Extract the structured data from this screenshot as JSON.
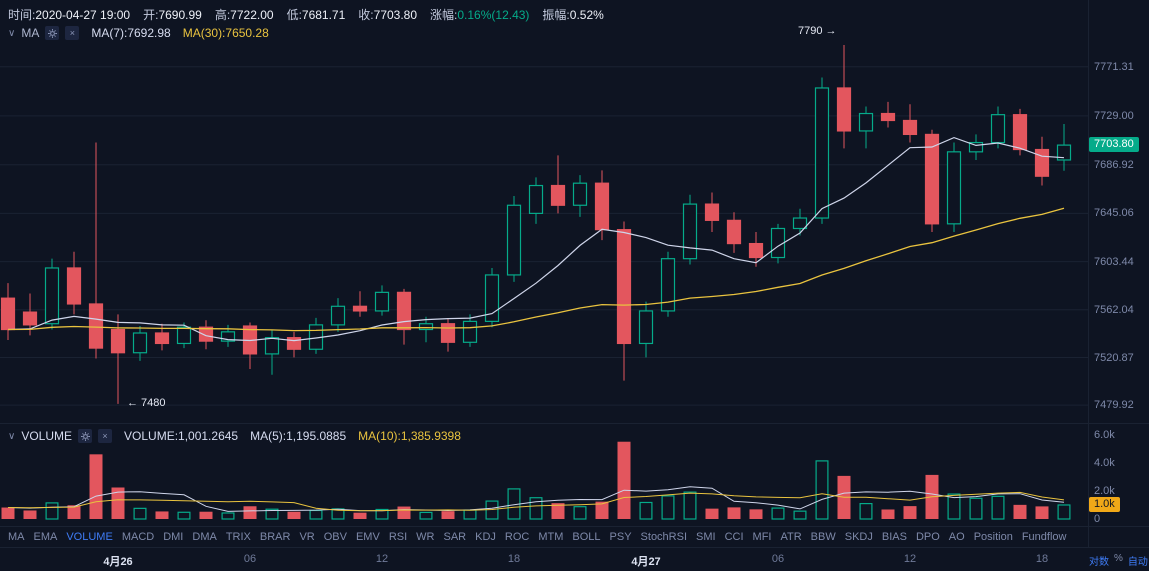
{
  "header": {
    "time_label": "时间:",
    "time_value": "2020-04-27 19:00",
    "open_label": "开:",
    "open_value": "7690.99",
    "high_label": "高:",
    "high_value": "7722.00",
    "low_label": "低:",
    "low_value": "7681.71",
    "close_label": "收:",
    "close_value": "7703.80",
    "change_label": "涨幅:",
    "change_value": "0.16%(12.43)",
    "amplitude_label": "振幅:",
    "amplitude_value": "0.52%"
  },
  "ma_panel": {
    "collapse_icon": "∨",
    "title": "MA",
    "ma7_label": "MA(7):7692.98",
    "ma30_label": "MA(30):7650.28",
    "close_icon": "×"
  },
  "volume_panel": {
    "collapse_icon": "∨",
    "title": "VOLUME",
    "volume_label": "VOLUME:1,001.2645",
    "ma5_label": "MA(5):1,195.0885",
    "ma10_label": "MA(10):1,385.9398",
    "close_icon": "×"
  },
  "annotations": {
    "high": "7790 →",
    "low": "← 7480"
  },
  "price_axis": {
    "labels": [
      "7771.31",
      "7729.00",
      "7686.92",
      "7645.06",
      "7603.44",
      "7562.04",
      "7520.87",
      "7479.92"
    ],
    "current": "7703.80"
  },
  "volume_axis": {
    "labels": [
      {
        "text": "6.0k",
        "value": 6000
      },
      {
        "text": "4.0k",
        "value": 4000
      },
      {
        "text": "2.0k",
        "value": 2000
      },
      {
        "text": "0",
        "value": 0
      }
    ],
    "current": "1.0k"
  },
  "toolbar": {
    "items": [
      "MA",
      "EMA",
      "VOLUME",
      "MACD",
      "DMI",
      "DMA",
      "TRIX",
      "BRAR",
      "VR",
      "OBV",
      "EMV",
      "RSI",
      "WR",
      "SAR",
      "KDJ",
      "ROC",
      "MTM",
      "BOLL",
      "PSY",
      "StochRSI",
      "SMI",
      "CCI",
      "MFI",
      "ATR",
      "BBW",
      "SKDJ",
      "BIAS",
      "DPO",
      "AO",
      "Position",
      "Fundflow"
    ],
    "active": "VOLUME"
  },
  "time_axis": {
    "labels": [
      {
        "text": "4月26",
        "index": 5,
        "major": true
      },
      {
        "text": "06",
        "index": 11,
        "major": false
      },
      {
        "text": "12",
        "index": 17,
        "major": false
      },
      {
        "text": "18",
        "index": 23,
        "major": false
      },
      {
        "text": "4月27",
        "index": 29,
        "major": true
      },
      {
        "text": "06",
        "index": 35,
        "major": false
      },
      {
        "text": "12",
        "index": 41,
        "major": false
      },
      {
        "text": "18",
        "index": 47,
        "major": false
      }
    ],
    "scale_log": "对数",
    "percent": "%",
    "auto": "自动"
  },
  "colors": {
    "background": "#0e1422",
    "grid": "#1a2232",
    "up": "#05ab8a",
    "down": "#e3565e",
    "ma_fast": "#cfd5ea",
    "ma_slow": "#e9c33f",
    "accent_blue": "#3f7cf6",
    "tag_orange": "#f0a818"
  },
  "chart_data": {
    "type": "candlestick+volume",
    "interval": "1h",
    "price_range": {
      "min": 7480,
      "max": 7790
    },
    "price_gridlines": [
      7771.31,
      7729.0,
      7686.92,
      7645.06,
      7603.44,
      7562.04,
      7520.87,
      7479.92
    ],
    "volume_range": {
      "min": 0,
      "max": 6000
    },
    "last_close": 7703.8,
    "last_volume": 1001.2645,
    "ma_periods": {
      "price": [
        7,
        30
      ],
      "volume": [
        5,
        10
      ]
    },
    "high_annotation_index": 38,
    "low_annotation_index": 5,
    "candles": [
      [
        7572,
        7585,
        7536,
        7545
      ],
      [
        7560,
        7576,
        7540,
        7549
      ],
      [
        7550,
        7606,
        7545,
        7598
      ],
      [
        7598,
        7612,
        7558,
        7567
      ],
      [
        7567,
        7706,
        7520,
        7529
      ],
      [
        7545,
        7558,
        7481,
        7525
      ],
      [
        7525,
        7548,
        7518,
        7542
      ],
      [
        7542,
        7550,
        7527,
        7533
      ],
      [
        7533,
        7551,
        7529,
        7547
      ],
      [
        7547,
        7553,
        7528,
        7535
      ],
      [
        7535,
        7549,
        7530,
        7543
      ],
      [
        7548,
        7551,
        7511,
        7524
      ],
      [
        7524,
        7545,
        7506,
        7538
      ],
      [
        7538,
        7543,
        7521,
        7528
      ],
      [
        7528,
        7555,
        7524,
        7549
      ],
      [
        7549,
        7572,
        7543,
        7565
      ],
      [
        7565,
        7578,
        7556,
        7561
      ],
      [
        7561,
        7583,
        7557,
        7577
      ],
      [
        7577,
        7580,
        7532,
        7545
      ],
      [
        7545,
        7556,
        7534,
        7550
      ],
      [
        7550,
        7554,
        7526,
        7534
      ],
      [
        7534,
        7558,
        7530,
        7552
      ],
      [
        7552,
        7598,
        7547,
        7592
      ],
      [
        7592,
        7660,
        7586,
        7652
      ],
      [
        7645,
        7676,
        7636,
        7669
      ],
      [
        7669,
        7695,
        7645,
        7652
      ],
      [
        7652,
        7678,
        7642,
        7671
      ],
      [
        7671,
        7682,
        7622,
        7631
      ],
      [
        7631,
        7638,
        7501,
        7533
      ],
      [
        7533,
        7569,
        7521,
        7561
      ],
      [
        7561,
        7612,
        7556,
        7606
      ],
      [
        7606,
        7661,
        7601,
        7653
      ],
      [
        7653,
        7663,
        7629,
        7639
      ],
      [
        7639,
        7646,
        7611,
        7619
      ],
      [
        7619,
        7629,
        7599,
        7607
      ],
      [
        7607,
        7636,
        7602,
        7632
      ],
      [
        7632,
        7649,
        7626,
        7641
      ],
      [
        7641,
        7762,
        7636,
        7753
      ],
      [
        7753,
        7790,
        7701,
        7716
      ],
      [
        7716,
        7737,
        7701,
        7731
      ],
      [
        7731,
        7741,
        7719,
        7725
      ],
      [
        7725,
        7739,
        7706,
        7713
      ],
      [
        7713,
        7717,
        7629,
        7636
      ],
      [
        7636,
        7706,
        7629,
        7698
      ],
      [
        7698,
        7713,
        7691,
        7706
      ],
      [
        7706,
        7737,
        7701,
        7730
      ],
      [
        7730,
        7735,
        7695,
        7700
      ],
      [
        7700,
        7711,
        7669,
        7677
      ],
      [
        7690.99,
        7722,
        7681.71,
        7703.8
      ]
    ],
    "volumes": [
      820,
      610,
      1150,
      980,
      4620,
      2250,
      760,
      540,
      480,
      520,
      430,
      910,
      700,
      520,
      610,
      720,
      450,
      680,
      890,
      470,
      560,
      640,
      1280,
      2150,
      1520,
      1130,
      880,
      1240,
      5520,
      1180,
      1650,
      1920,
      740,
      830,
      690,
      780,
      560,
      4150,
      3080,
      1100,
      680,
      920,
      3150,
      1780,
      1480,
      1620,
      1010,
      900,
      1001.2645
    ]
  }
}
